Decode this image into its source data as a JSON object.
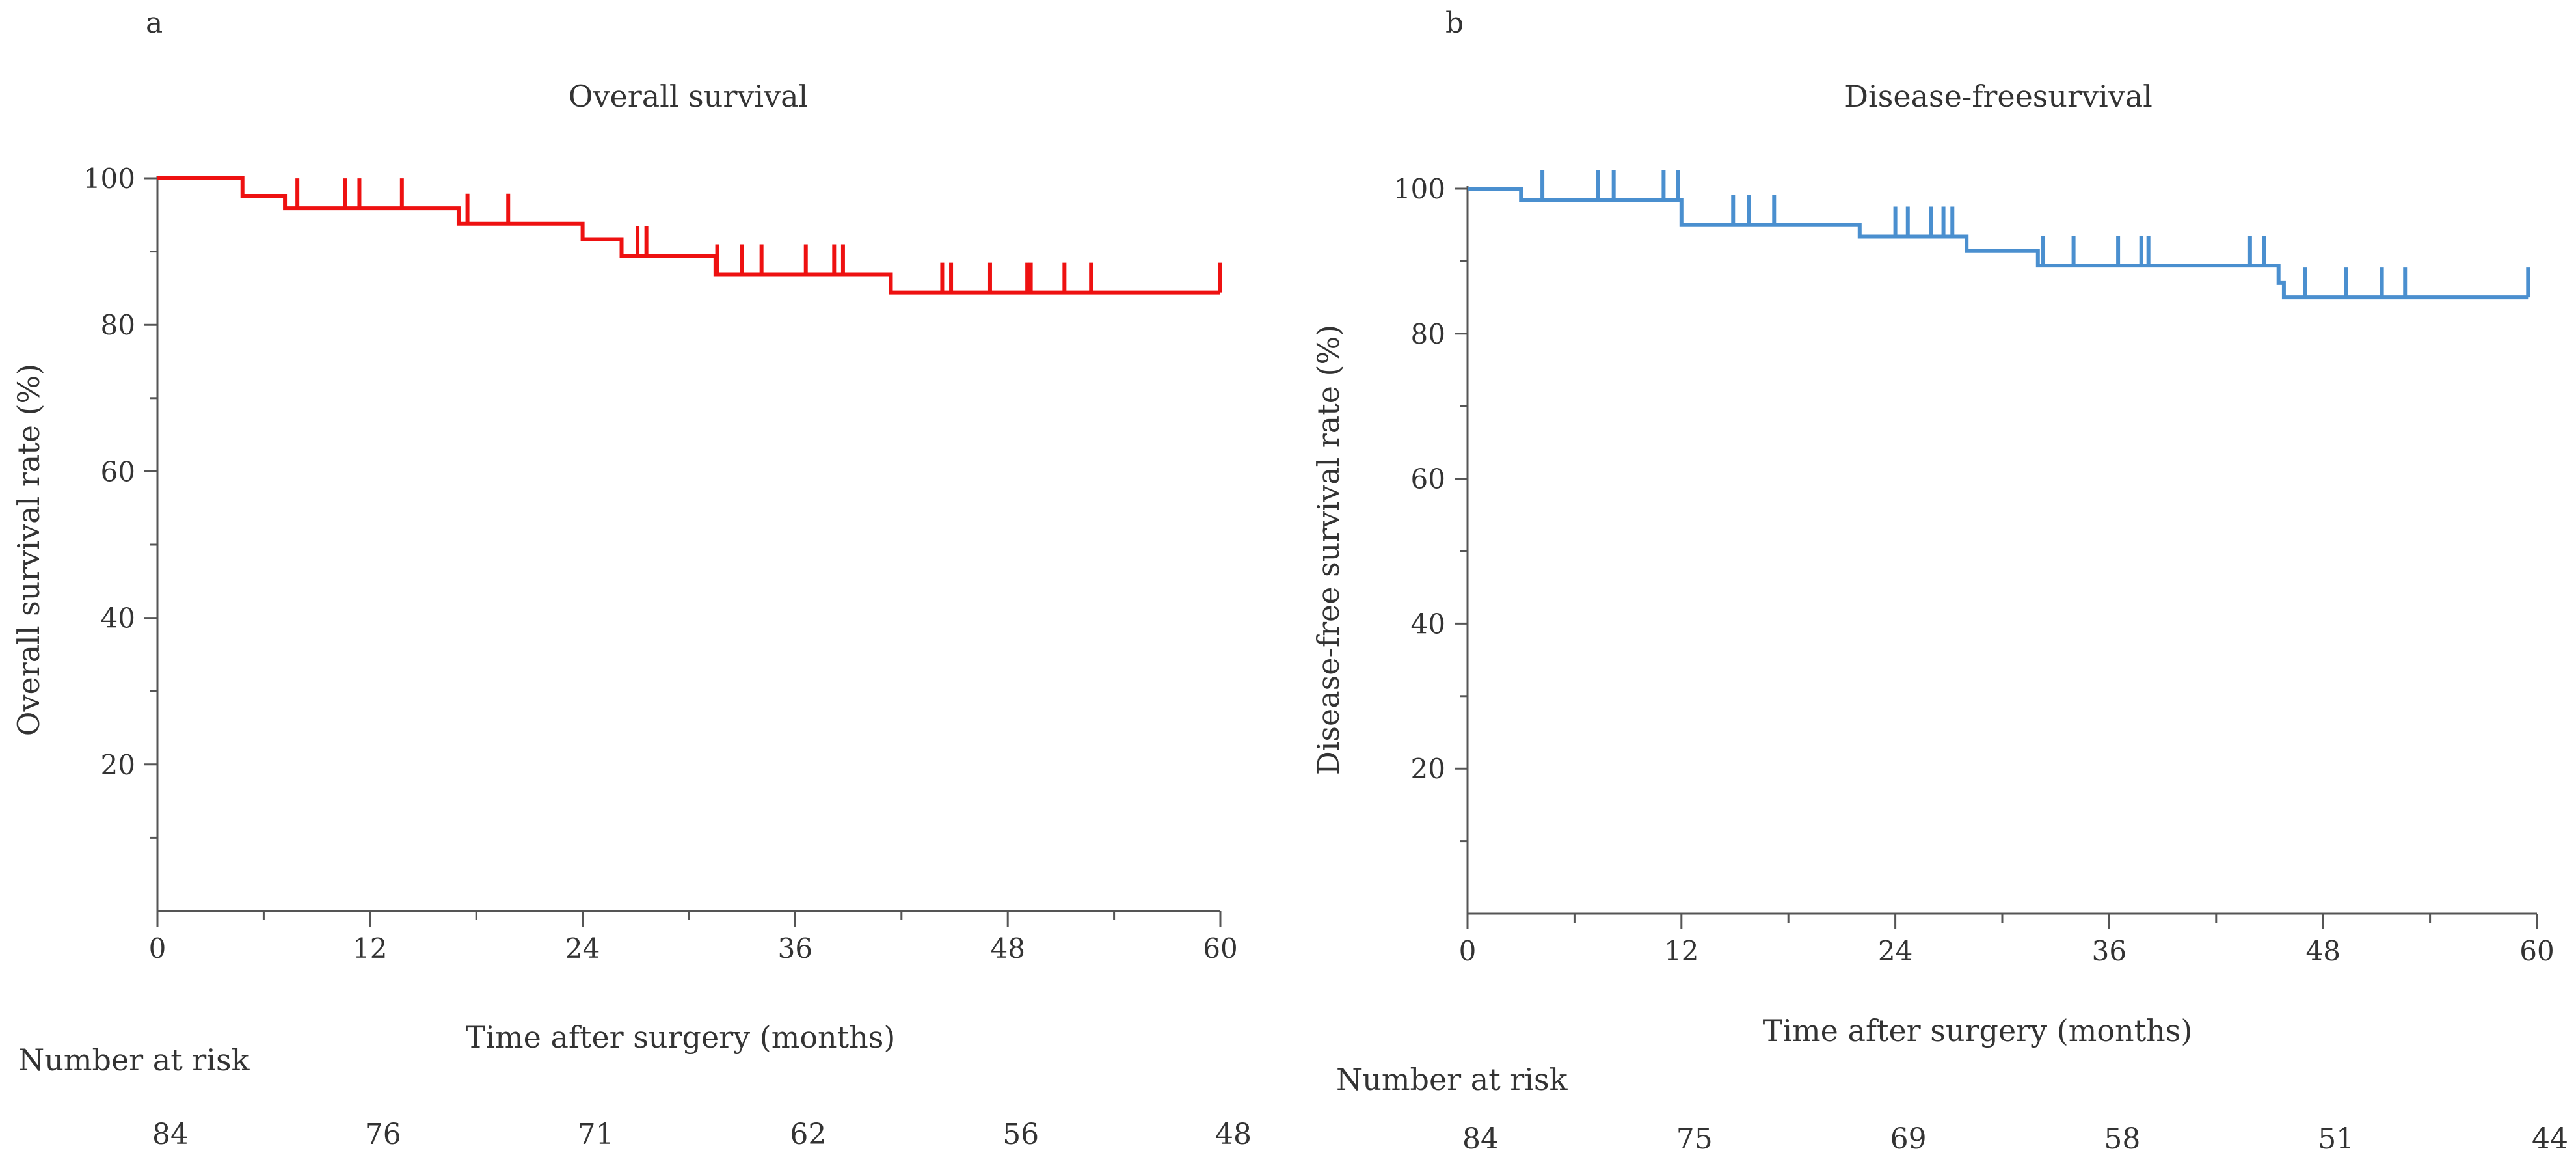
{
  "chart_data": [
    {
      "type": "line",
      "panel_label": "a",
      "title": "Overall survival",
      "xlabel": "Time after surgery (months)",
      "ylabel": "Overall survival rate (%)",
      "xlim": [
        0,
        60
      ],
      "ylim": [
        0,
        100
      ],
      "xticks": [
        0,
        12,
        24,
        36,
        48,
        60
      ],
      "yticks": [
        20,
        40,
        60,
        80,
        100
      ],
      "color": "#ee1111",
      "steps": [
        {
          "x": 0,
          "y": 100
        },
        {
          "x": 4.8,
          "y": 97.6
        },
        {
          "x": 7.2,
          "y": 95.9
        },
        {
          "x": 17,
          "y": 93.8
        },
        {
          "x": 24,
          "y": 91.7
        },
        {
          "x": 26.2,
          "y": 89.4
        },
        {
          "x": 31.5,
          "y": 86.9
        },
        {
          "x": 41.4,
          "y": 84.4
        },
        {
          "x": 60,
          "y": 84.4
        }
      ],
      "censors": [
        7.9,
        10.6,
        11.4,
        13.8,
        17.5,
        19.8,
        27.1,
        27.6,
        31.6,
        33.0,
        34.1,
        36.6,
        38.2,
        38.7,
        44.3,
        44.8,
        47.0,
        49.1,
        49.3,
        51.2,
        52.7,
        60
      ],
      "risk_label": "Number at risk",
      "risk_times": [
        0,
        12,
        24,
        36,
        48,
        60
      ],
      "risk_values": [
        "84",
        "76",
        "71",
        "62",
        "56",
        "48"
      ]
    },
    {
      "type": "line",
      "panel_label": "b",
      "title": "Disease-freesurvival",
      "xlabel": "Time after surgery (months)",
      "ylabel": "Disease-free survival rate (%)",
      "xlim": [
        0,
        60
      ],
      "ylim": [
        0,
        100
      ],
      "xticks": [
        0,
        12,
        24,
        36,
        48,
        60
      ],
      "yticks": [
        20,
        40,
        60,
        80,
        100
      ],
      "color": "#4a8fcf",
      "steps": [
        {
          "x": 0,
          "y": 100
        },
        {
          "x": 3,
          "y": 98.4
        },
        {
          "x": 12,
          "y": 95
        },
        {
          "x": 22,
          "y": 93.4
        },
        {
          "x": 28,
          "y": 91.4
        },
        {
          "x": 32,
          "y": 89.4
        },
        {
          "x": 45.5,
          "y": 87
        },
        {
          "x": 45.8,
          "y": 85
        },
        {
          "x": 59.5,
          "y": 85
        }
      ],
      "censors": [
        4.2,
        7.3,
        8.2,
        11.0,
        11.8,
        14.9,
        15.8,
        17.2,
        24.0,
        24.7,
        26.0,
        26.7,
        27.2,
        32.3,
        34.0,
        36.5,
        37.8,
        38.2,
        43.9,
        44.7,
        47.0,
        49.3,
        51.3,
        52.6,
        59.5
      ],
      "risk_label": "Number at risk",
      "risk_times": [
        0,
        12,
        24,
        36,
        48,
        60
      ],
      "risk_values": [
        "84",
        "75",
        "69",
        "58",
        "51",
        "44"
      ]
    }
  ]
}
